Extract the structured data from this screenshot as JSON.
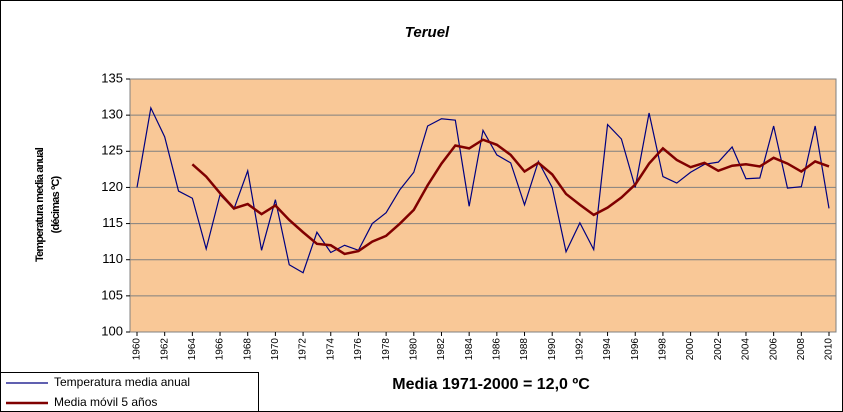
{
  "chart_data": {
    "type": "line",
    "title": "Teruel",
    "ylabel": [
      "Temperatura media anual",
      "(décimas ºC)"
    ],
    "annotation": "Media 1971-2000 = 12,0 ºC",
    "x": [
      1960,
      1961,
      1962,
      1963,
      1964,
      1965,
      1966,
      1967,
      1968,
      1969,
      1970,
      1971,
      1972,
      1973,
      1974,
      1975,
      1976,
      1977,
      1978,
      1979,
      1980,
      1981,
      1982,
      1983,
      1984,
      1985,
      1986,
      1987,
      1988,
      1989,
      1990,
      1991,
      1992,
      1993,
      1994,
      1995,
      1996,
      1997,
      1998,
      1999,
      2000,
      2001,
      2002,
      2003,
      2004,
      2005,
      2006,
      2007,
      2008,
      2009,
      2010
    ],
    "xlim": [
      1960,
      2010
    ],
    "xticks": [
      1960,
      1962,
      1964,
      1966,
      1968,
      1970,
      1972,
      1974,
      1976,
      1978,
      1980,
      1982,
      1984,
      1986,
      1988,
      1990,
      1992,
      1994,
      1996,
      1998,
      2000,
      2002,
      2004,
      2006,
      2008,
      2010
    ],
    "ylim": [
      100,
      135
    ],
    "yticks": [
      100,
      105,
      110,
      115,
      120,
      125,
      130,
      135
    ],
    "grid": true,
    "background": "#f9c897",
    "series": [
      {
        "name": "Temperatura media anual",
        "color": "#000080",
        "values": [
          120,
          131,
          127,
          119.5,
          118.5,
          111.5,
          119,
          117,
          122.3,
          111.3,
          118.3,
          109.3,
          108.2,
          113.8,
          111,
          112,
          111.3,
          115,
          116.5,
          119.7,
          122.1,
          128.5,
          129.5,
          129.3,
          117.4,
          127.9,
          124.5,
          123.4,
          117.6,
          123.6,
          120,
          111.1,
          115.1,
          111.4,
          128.7,
          126.7,
          120,
          130.3,
          121.5,
          120.6,
          122.1,
          123.2,
          123.5,
          125.6,
          121.2,
          121.3,
          128.5,
          119.9,
          120.1,
          128.5,
          117.1
        ]
      },
      {
        "name": "Media móvil 5 años",
        "color": "#800000",
        "values": [
          null,
          null,
          null,
          null,
          123.2,
          121.5,
          119.2,
          117.1,
          117.7,
          116.3,
          117.5,
          115.5,
          113.8,
          112.2,
          112.0,
          110.8,
          111.2,
          112.5,
          113.3,
          115.0,
          116.9,
          120.3,
          123.3,
          125.8,
          125.4,
          126.6,
          125.9,
          124.5,
          122.2,
          123.4,
          121.8,
          119.1,
          117.6,
          116.2,
          117.2,
          118.6,
          120.4,
          123.3,
          125.4,
          123.8,
          122.8,
          123.4,
          122.3,
          123.0,
          123.2,
          122.9,
          124.1,
          123.3,
          122.2,
          123.6,
          122.9
        ]
      }
    ]
  }
}
